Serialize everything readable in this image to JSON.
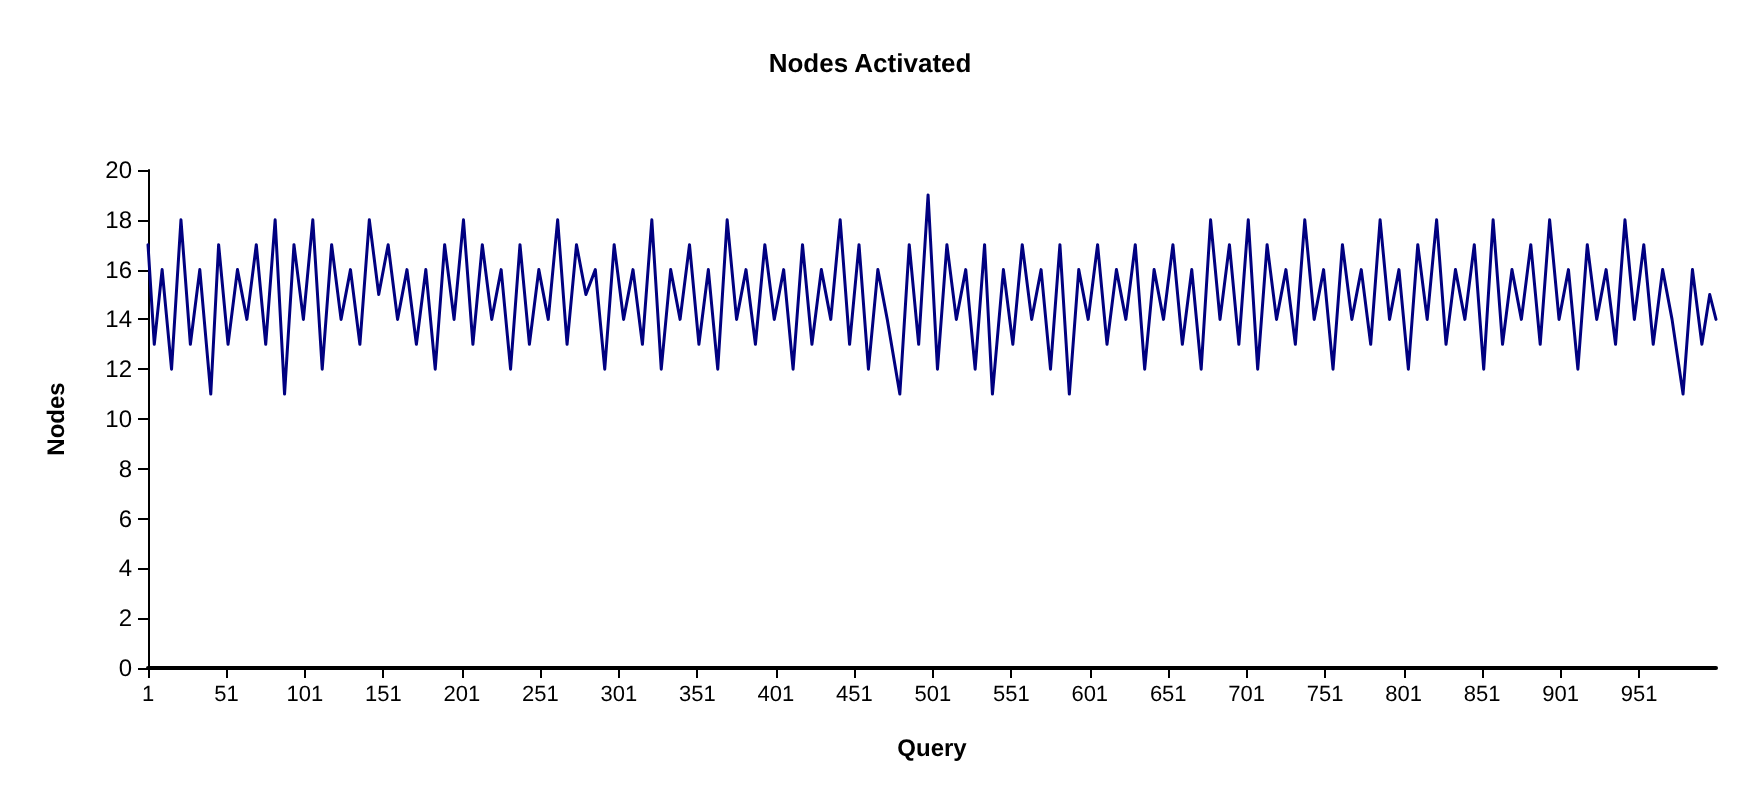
{
  "chart_data": {
    "type": "line",
    "title": "Nodes Activated",
    "xlabel": "Query",
    "ylabel": "Nodes",
    "xlim": [
      1,
      1000
    ],
    "xticks": [
      1,
      51,
      101,
      151,
      201,
      251,
      301,
      351,
      401,
      451,
      501,
      551,
      601,
      651,
      701,
      751,
      801,
      851,
      901,
      951
    ],
    "ylim": [
      0,
      20
    ],
    "yticks": [
      0,
      2,
      4,
      6,
      8,
      10,
      12,
      14,
      16,
      18,
      20
    ],
    "grid": false,
    "marker": "none",
    "line_style": "solid",
    "series": [
      {
        "color": "#000080",
        "x": [
          1,
          5,
          10,
          16,
          22,
          28,
          34,
          41,
          46,
          52,
          58,
          64,
          70,
          76,
          82,
          88,
          94,
          100,
          106,
          112,
          118,
          124,
          130,
          136,
          142,
          148,
          154,
          160,
          166,
          172,
          178,
          184,
          190,
          196,
          202,
          208,
          214,
          220,
          226,
          232,
          238,
          244,
          250,
          256,
          262,
          268,
          274,
          280,
          286,
          292,
          298,
          304,
          310,
          316,
          322,
          328,
          334,
          340,
          346,
          352,
          358,
          364,
          370,
          376,
          382,
          388,
          394,
          400,
          406,
          412,
          418,
          424,
          430,
          436,
          442,
          448,
          454,
          460,
          466,
          472,
          480,
          486,
          492,
          498,
          504,
          510,
          516,
          522,
          528,
          534,
          539,
          546,
          552,
          558,
          564,
          570,
          576,
          582,
          588,
          594,
          600,
          606,
          612,
          618,
          624,
          630,
          636,
          642,
          648,
          654,
          660,
          666,
          672,
          678,
          684,
          690,
          696,
          702,
          708,
          714,
          720,
          726,
          732,
          738,
          744,
          750,
          756,
          762,
          768,
          774,
          780,
          786,
          792,
          798,
          804,
          810,
          816,
          822,
          828,
          834,
          840,
          846,
          852,
          858,
          864,
          870,
          876,
          882,
          888,
          894,
          900,
          906,
          912,
          918,
          924,
          930,
          936,
          942,
          948,
          954,
          960,
          966,
          972,
          979,
          985,
          991,
          996,
          1000
        ],
        "values": [
          17,
          13,
          16,
          12,
          18,
          13,
          16,
          11,
          17,
          13,
          16,
          14,
          17,
          13,
          18,
          11,
          17,
          14,
          18,
          12,
          17,
          14,
          16,
          13,
          18,
          15,
          17,
          14,
          16,
          13,
          16,
          12,
          17,
          14,
          18,
          13,
          17,
          14,
          16,
          12,
          17,
          13,
          16,
          14,
          18,
          13,
          17,
          15,
          16,
          12,
          17,
          14,
          16,
          13,
          18,
          12,
          16,
          14,
          17,
          13,
          16,
          12,
          18,
          14,
          16,
          13,
          17,
          14,
          16,
          12,
          17,
          13,
          16,
          14,
          18,
          13,
          17,
          12,
          16,
          14,
          11,
          17,
          13,
          19,
          12,
          17,
          14,
          16,
          12,
          17,
          11,
          16,
          13,
          17,
          14,
          16,
          12,
          17,
          11,
          16,
          14,
          17,
          13,
          16,
          14,
          17,
          12,
          16,
          14,
          17,
          13,
          16,
          12,
          18,
          14,
          17,
          13,
          18,
          12,
          17,
          14,
          16,
          13,
          18,
          14,
          16,
          12,
          17,
          14,
          16,
          13,
          18,
          14,
          16,
          12,
          17,
          14,
          18,
          13,
          16,
          14,
          17,
          12,
          18,
          13,
          16,
          14,
          17,
          13,
          18,
          14,
          16,
          12,
          17,
          14,
          16,
          13,
          18,
          14,
          17,
          13,
          16,
          14,
          11,
          16,
          13,
          15,
          14
        ]
      }
    ]
  }
}
